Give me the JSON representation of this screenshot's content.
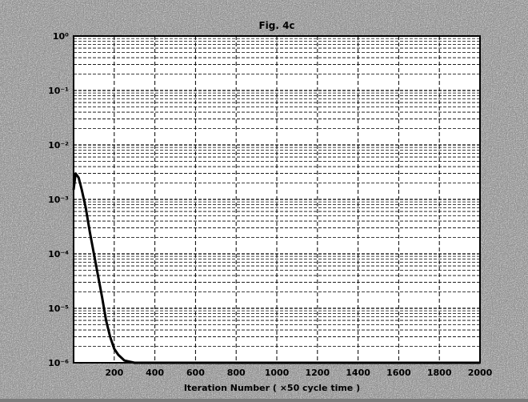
{
  "chart_data": {
    "type": "line",
    "title": "Fig. 4c",
    "xlabel": "Iteration Number ( ×50 cycle time )",
    "ylabel": "",
    "xscale": "linear",
    "yscale": "log",
    "xlim": [
      0,
      2000
    ],
    "ylim": [
      1e-06,
      1.0
    ],
    "grid": true,
    "x_ticks": [
      "200",
      "400",
      "600",
      "800",
      "1000",
      "1200",
      "1400",
      "1600",
      "1800",
      "2000"
    ],
    "y_ticks": [
      "10⁻⁶",
      "10⁻⁵",
      "10⁻⁴",
      "10⁻³",
      "10⁻²",
      "10⁻¹",
      "10⁰"
    ],
    "series": [
      {
        "x": [
          0,
          10,
          25,
          40,
          60,
          80,
          100,
          120,
          140,
          160,
          180,
          200,
          220,
          250,
          300,
          400,
          600,
          800,
          1000,
          1200,
          1400,
          1600,
          1800,
          2000
        ],
        "y": [
          0.0015,
          0.003,
          0.0025,
          0.0015,
          0.0007,
          0.00025,
          0.0001,
          4e-05,
          1.6e-05,
          6e-06,
          3e-06,
          1.8e-06,
          1.4e-06,
          1.1e-06,
          1e-06,
          1e-06,
          1e-06,
          1e-06,
          1e-06,
          1e-06,
          1e-06,
          1e-06,
          1e-06,
          1e-06
        ]
      }
    ]
  },
  "colors": {
    "background": "#7a7a7a",
    "plot_area": "#ffffff",
    "grid": "#000000",
    "line": "#000000"
  }
}
